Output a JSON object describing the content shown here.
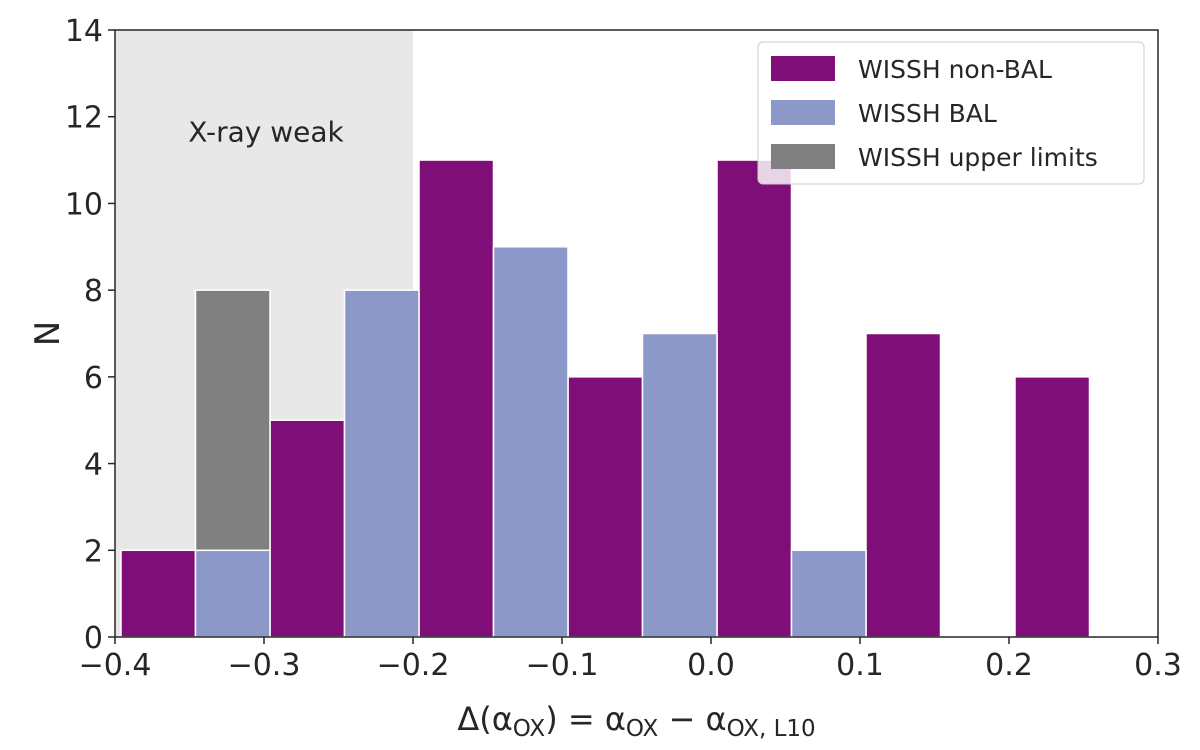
{
  "chart_data": {
    "type": "bar",
    "xlabel_parts": {
      "prefix": "Δ(α",
      "sub1": "OX",
      "middle": ") = α",
      "sub2": "OX",
      "minus": " − α",
      "sub3": "OX, L10"
    },
    "ylabel": "N",
    "xlim": [
      -0.4,
      0.3
    ],
    "ylim": [
      0,
      14
    ],
    "xticks": [
      -0.4,
      -0.3,
      -0.2,
      -0.1,
      0.0,
      0.1,
      0.2,
      0.3
    ],
    "xtick_labels": [
      "−0.4",
      "−0.3",
      "−0.2",
      "−0.1",
      "0.0",
      "0.1",
      "0.2",
      "0.3"
    ],
    "yticks": [
      0,
      2,
      4,
      6,
      8,
      10,
      12,
      14
    ],
    "ytick_labels": [
      "0",
      "2",
      "4",
      "6",
      "8",
      "10",
      "12",
      "14"
    ],
    "shaded_region": {
      "x0": -0.4,
      "x1": -0.2,
      "label": "X-ray weak",
      "color": "#e8e8e8"
    },
    "bin_edges": [
      -0.4,
      -0.3,
      -0.2,
      -0.1,
      0.0,
      0.1,
      0.2,
      0.3
    ],
    "series": [
      {
        "name": "WISSH non-BAL",
        "color": "#800e78",
        "offset": 0,
        "values": [
          2,
          5,
          11,
          6,
          11,
          7,
          6
        ]
      },
      {
        "name": "WISSH BAL",
        "color": "#8c99c8",
        "offset": 1,
        "values": [
          2,
          8,
          9,
          7,
          2,
          0,
          0
        ]
      },
      {
        "name": "WISSH upper limits",
        "color": "#808080",
        "offset": 1,
        "values": [
          6,
          0,
          0,
          0,
          0,
          0,
          0
        ],
        "stack_on": "WISSH BAL"
      }
    ],
    "legend_position": "top-right",
    "grid": false
  }
}
